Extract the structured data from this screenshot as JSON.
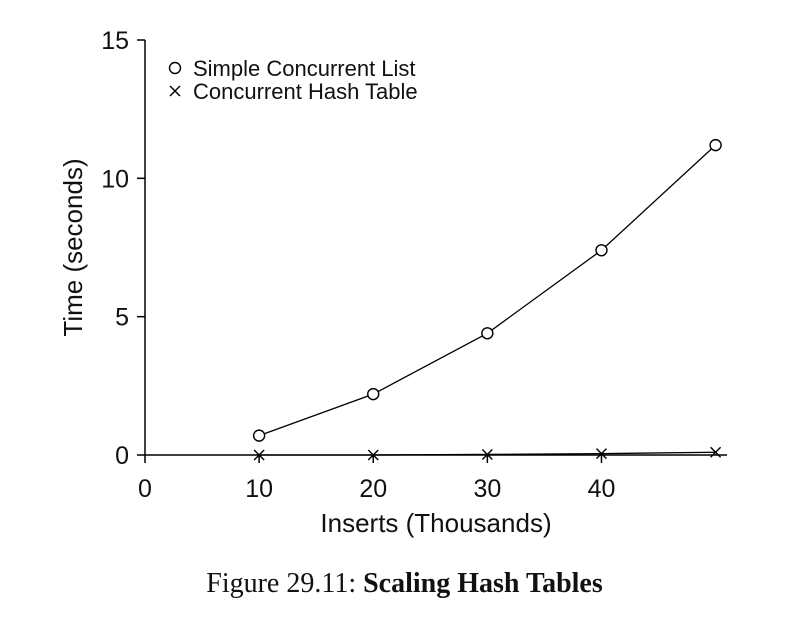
{
  "chart_data": {
    "type": "line",
    "title": "",
    "xlabel": "Inserts (Thousands)",
    "ylabel": "Time (seconds)",
    "xlim": [
      0,
      51
    ],
    "ylim": [
      0,
      15
    ],
    "xticks": [
      0,
      10,
      20,
      30,
      40
    ],
    "yticks": [
      0,
      5,
      10,
      15
    ],
    "grid": false,
    "legend_position": "top-left",
    "series": [
      {
        "name": "Simple Concurrent List",
        "marker": "circle",
        "color": "#000000",
        "x": [
          10,
          20,
          30,
          40,
          50
        ],
        "y": [
          0.7,
          2.2,
          4.4,
          7.4,
          11.2
        ]
      },
      {
        "name": "Concurrent Hash Table",
        "marker": "x",
        "color": "#000000",
        "x": [
          10,
          20,
          30,
          40,
          50
        ],
        "y": [
          0.0,
          0.0,
          0.02,
          0.05,
          0.1
        ]
      }
    ]
  },
  "caption": {
    "prefix": "Figure 29.11: ",
    "title": "Scaling Hash Tables"
  }
}
